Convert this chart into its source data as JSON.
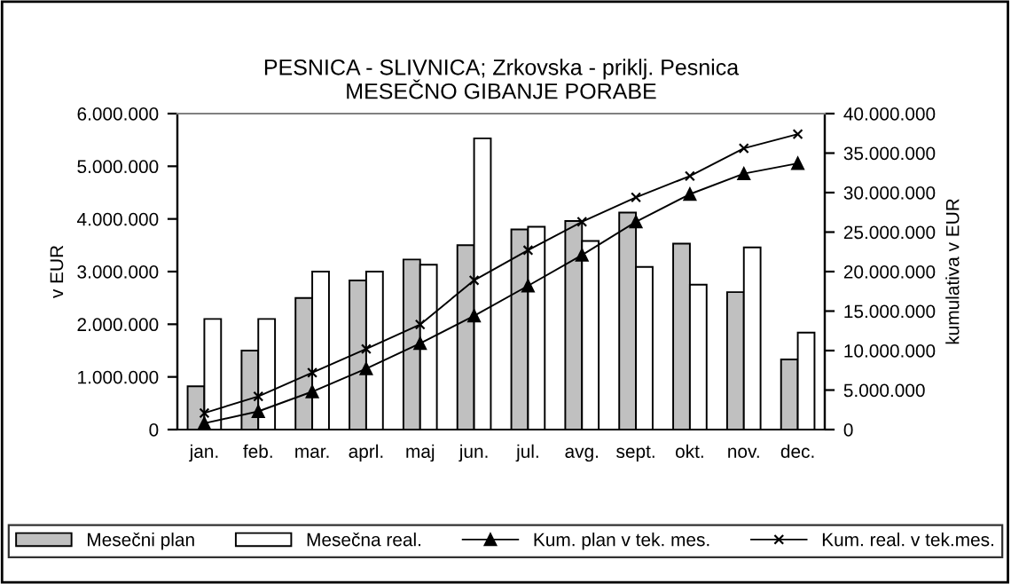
{
  "chart_data": {
    "type": "bar",
    "title": "PESNICA - SLIVNICA; Zrkovska - priklj. Pesnica\nMESEČNO GIBANJE PORABE",
    "ylabel": "v EUR",
    "y2label": "kumulativa v EUR",
    "categories": [
      "jan.",
      "feb.",
      "mar.",
      "aprl.",
      "maj",
      "jun.",
      "jul.",
      "avg.",
      "sept.",
      "okt.",
      "nov.",
      "dec."
    ],
    "series": [
      {
        "name": "Mesečni plan",
        "color": "#c0c0c0",
        "values": [
          820000,
          1500000,
          2500000,
          2830000,
          3230000,
          3500000,
          3800000,
          3960000,
          4120000,
          3530000,
          2610000,
          1330000
        ]
      },
      {
        "name": "Mesečna real.",
        "color": "#ffffff",
        "values": [
          2100000,
          2100000,
          3000000,
          3000000,
          3130000,
          5530000,
          3850000,
          3580000,
          3090000,
          2750000,
          3460000,
          1840000
        ]
      },
      {
        "name": "Kum. plan v tek. mes.",
        "type": "line",
        "axis": "y2",
        "marker": "triangle",
        "color": "#000000",
        "values": [
          800000,
          2300000,
          4800000,
          7700000,
          10900000,
          14400000,
          18200000,
          22100000,
          26300000,
          29800000,
          32400000,
          33700000
        ]
      },
      {
        "name": "Kum. real. v tek.mes.",
        "type": "line",
        "axis": "y2",
        "marker": "cross",
        "color": "#000000",
        "values": [
          2100000,
          4200000,
          7200000,
          10200000,
          13300000,
          18900000,
          22700000,
          26300000,
          29400000,
          32100000,
          35600000,
          37400000
        ]
      }
    ],
    "ylim": [
      0,
      6000000
    ],
    "yticks": [
      {
        "value": 0,
        "label": "0"
      },
      {
        "value": 1000000,
        "label": "1.000.000"
      },
      {
        "value": 2000000,
        "label": "2.000.000"
      },
      {
        "value": 3000000,
        "label": "3.000.000"
      },
      {
        "value": 4000000,
        "label": "4.000.000"
      },
      {
        "value": 5000000,
        "label": "5.000.000"
      },
      {
        "value": 6000000,
        "label": "6.000.000"
      }
    ],
    "y2lim": [
      0,
      40000000
    ],
    "y2ticks": [
      {
        "value": 0,
        "label": "0"
      },
      {
        "value": 5000000,
        "label": "5.000.000"
      },
      {
        "value": 10000000,
        "label": "10.000.000"
      },
      {
        "value": 15000000,
        "label": "15.000.000"
      },
      {
        "value": 20000000,
        "label": "20.000.000"
      },
      {
        "value": 25000000,
        "label": "25.000.000"
      },
      {
        "value": 30000000,
        "label": "30.000.000"
      },
      {
        "value": 35000000,
        "label": "35.000.000"
      },
      {
        "value": 40000000,
        "label": "40.000.000"
      }
    ],
    "grid": false,
    "legend": "bottom"
  }
}
